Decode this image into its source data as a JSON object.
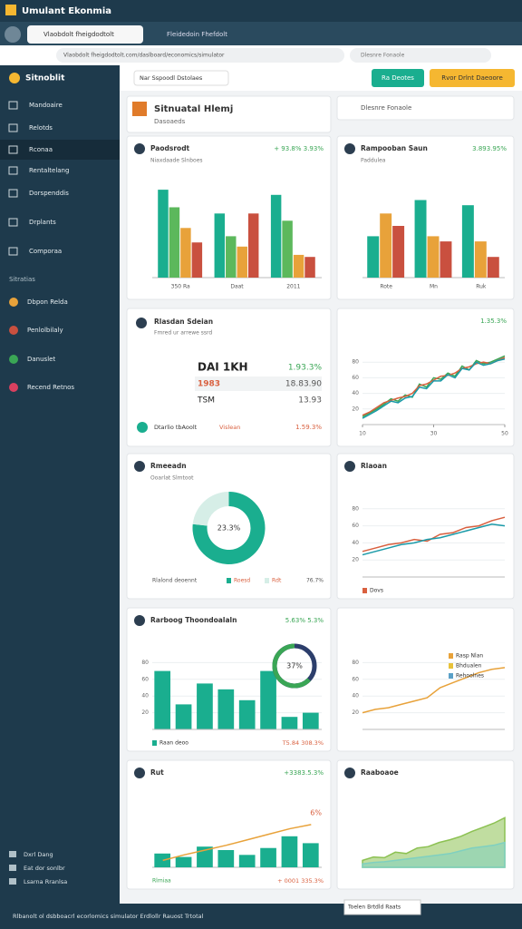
{
  "header": {
    "title": "Umulant Ekonmia"
  },
  "browser": {
    "tab": "Vlaobdolt fheigdodtolt",
    "tab2": "Fleidedoin Fhefdolt",
    "address": "Vlaobdolt fheigdodtolt.com/daslboard/economics/simulator"
  },
  "sidebar": {
    "brand": "Sitnoblit",
    "items": [
      "Mandoaire",
      "Relotds",
      "Rconaa",
      "Rentaltelang",
      "Dorspenddis",
      "Drplants",
      "Comporaa"
    ],
    "section": "Sitratias",
    "items2": [
      "Dbpon Relda",
      "Penlolbilaly",
      "Danuslet",
      "Recend Retnos"
    ],
    "footer": [
      "Dxrl Dang",
      "Eat dor sonlbr",
      "Lsarna Rranlsa"
    ]
  },
  "toolbar": {
    "select": "Nar Sspoodl Dstolaes",
    "button1": "Ra Deotes",
    "button2": "Rvor Drlnt Daeoore"
  },
  "panel_header": {
    "title": "Sitnuatal Hlemj",
    "subtitle": "Dasoaeds"
  },
  "search": {
    "placeholder": "Dlesnre Fonaole"
  },
  "kpi": {
    "title": "Rlasdan Sdeian",
    "subtitle": "Fmred ur arrewe ssrd",
    "rows": [
      [
        "DAI 1KH",
        "1.93.3%"
      ],
      [
        "1983",
        "18.83.90"
      ],
      [
        "TSM",
        "13.93"
      ]
    ],
    "footer": [
      "Dtarlio tbAoolt",
      "Vislean",
      "1.59.3%"
    ]
  },
  "status": {
    "text": "Rlbanolt ol dsbboacrl ecorlomics simulator Erdlollr Rauost Trtotal"
  },
  "chart_data": [
    {
      "type": "bar",
      "title": "Paodsrodt",
      "subtitle": "Niaxdaade Slnboes",
      "badge": "+ 93.8% 3.93%",
      "categories": [
        "350 Ra",
        "Daat",
        "2011"
      ],
      "ylim": [
        0,
        100
      ],
      "series": [
        {
          "color": "#1aae8f",
          "values": [
            85,
            62,
            80
          ]
        },
        {
          "color": "#5cb85c",
          "values": [
            68,
            40,
            55
          ]
        },
        {
          "color": "#e8a23a",
          "values": [
            48,
            30,
            22
          ]
        },
        {
          "color": "#c9503f",
          "values": [
            34,
            62,
            20
          ]
        }
      ]
    },
    {
      "type": "bar",
      "title": "Rampooban Saun",
      "subtitle": "Paddulea",
      "badge": "3.893.95%",
      "categories": [
        "Rote",
        "Mn",
        "Ruk"
      ],
      "ylim": [
        0,
        100
      ],
      "series": [
        {
          "color": "#1aae8f",
          "values": [
            40,
            75,
            70
          ]
        },
        {
          "color": "#e8a23a",
          "values": [
            62,
            40,
            35
          ]
        },
        {
          "color": "#c9503f",
          "values": [
            50,
            35,
            20
          ]
        }
      ]
    },
    {
      "type": "line",
      "badge": "1.35.3%",
      "x": [
        10,
        12,
        14,
        16,
        18,
        20,
        22,
        24,
        26,
        28,
        30,
        32,
        34,
        36,
        38,
        40,
        42,
        44,
        46,
        48,
        50
      ],
      "xlim": [
        10,
        50
      ],
      "xticks": [
        10,
        30,
        50
      ],
      "ylim": [
        0,
        100
      ],
      "yticks": [
        20,
        40,
        60,
        80
      ],
      "series": [
        {
          "color": "#3aa655",
          "values": [
            10,
            15,
            20,
            26,
            33,
            30,
            38,
            35,
            52,
            48,
            60,
            58,
            66,
            62,
            75,
            70,
            82,
            78,
            80,
            84,
            88
          ]
        },
        {
          "color": "#d9603f",
          "values": [
            12,
            16,
            22,
            28,
            31,
            34,
            36,
            40,
            50,
            52,
            57,
            62,
            63,
            66,
            72,
            74,
            78,
            80,
            78,
            82,
            86
          ]
        },
        {
          "color": "#1a9aa8",
          "values": [
            8,
            13,
            18,
            24,
            30,
            28,
            34,
            36,
            48,
            46,
            56,
            56,
            64,
            60,
            72,
            70,
            80,
            76,
            78,
            82,
            84
          ]
        }
      ]
    },
    {
      "type": "pie",
      "title": "Rmeeadn",
      "subtitle": "Ooarlat Slmtoot",
      "legend_title": "Rlalond deoennt",
      "categories": [
        "Roesd",
        "Rdt"
      ],
      "values": [
        76.7,
        23.3
      ],
      "value_labels": [
        "76.7%",
        "23.3%"
      ],
      "colors": [
        "#1aae8f",
        "#d6eee7"
      ]
    },
    {
      "type": "line",
      "title": "Rlaoan",
      "x": [
        1,
        2,
        3,
        4,
        5,
        6,
        7,
        8,
        9,
        10,
        11,
        12
      ],
      "ylim": [
        0,
        100
      ],
      "yticks": [
        20,
        40,
        60,
        80
      ],
      "series": [
        {
          "name": "Dovs",
          "color": "#d9603f",
          "values": [
            30,
            34,
            38,
            40,
            44,
            42,
            50,
            52,
            58,
            60,
            66,
            70
          ]
        },
        {
          "color": "#1a9aa8",
          "values": [
            26,
            30,
            34,
            38,
            40,
            44,
            46,
            50,
            54,
            58,
            62,
            60
          ]
        }
      ]
    },
    {
      "type": "bar",
      "title": "Rarboog Thoondoalaln",
      "badge": "5.63% 5.3%",
      "footer_right": "T5.84 308.3%",
      "categories": [
        null,
        null,
        null,
        null,
        null,
        null,
        null,
        null
      ],
      "ylim": [
        0,
        100
      ],
      "yticks": [
        20,
        40,
        60,
        80
      ],
      "series": [
        {
          "name": "Raan deoo",
          "color": "#1aae8f",
          "values": [
            70,
            30,
            55,
            48,
            35,
            70,
            15,
            20
          ]
        }
      ]
    },
    {
      "type": "gauge",
      "values": [
        37
      ],
      "value_labels": [
        "37%"
      ],
      "ylim": [
        0,
        100
      ],
      "colors": [
        "#3aa655",
        "#2c3e6b"
      ]
    },
    {
      "type": "line",
      "x": [
        1,
        2,
        3,
        4,
        5,
        6,
        7,
        8,
        9,
        10,
        11,
        12
      ],
      "ylim": [
        0,
        100
      ],
      "yticks": [
        20,
        40,
        60,
        80
      ],
      "legend": "right",
      "series": [
        {
          "name": "Rasp Nlan",
          "color": "#e8a23a",
          "values": [
            20,
            24,
            26,
            30,
            34,
            38,
            50,
            56,
            62,
            68,
            72,
            74
          ]
        }
      ],
      "legend_items": [
        {
          "name": "Bhdualen",
          "color": "#e8c23a"
        },
        {
          "name": "Rehoolnes",
          "color": "#5aa0c8"
        }
      ]
    },
    {
      "type": "combo",
      "title": "Rut",
      "badge": "+3383.5.3%",
      "annotation": "6%",
      "footer_left": "Rlmiaa",
      "footer_right": "+ 0001 335.3%",
      "categories": [
        null,
        null,
        null,
        null,
        null,
        null,
        null,
        null
      ],
      "ylim": [
        0,
        100
      ],
      "series": [
        {
          "kind": "bar",
          "color": "#1aae8f",
          "values": [
            20,
            15,
            30,
            25,
            18,
            28,
            45,
            35
          ]
        },
        {
          "kind": "line",
          "color": "#e8a23a",
          "values": [
            10,
            18,
            25,
            32,
            40,
            48,
            56,
            62
          ]
        }
      ]
    },
    {
      "type": "area",
      "title": "Raaboaoe",
      "dropdown": "Toelen Brtdld Raats",
      "x": [
        1,
        2,
        3,
        4,
        5,
        6,
        7,
        8,
        9,
        10,
        11,
        12,
        13,
        14
      ],
      "ylim": [
        0,
        100
      ],
      "series": [
        {
          "color": "#8cc152",
          "values": [
            10,
            15,
            14,
            22,
            20,
            28,
            30,
            36,
            40,
            45,
            52,
            58,
            64,
            72
          ]
        },
        {
          "color": "#7fd0c0",
          "values": [
            5,
            7,
            8,
            10,
            12,
            14,
            16,
            18,
            20,
            24,
            28,
            30,
            32,
            36
          ]
        }
      ]
    }
  ]
}
